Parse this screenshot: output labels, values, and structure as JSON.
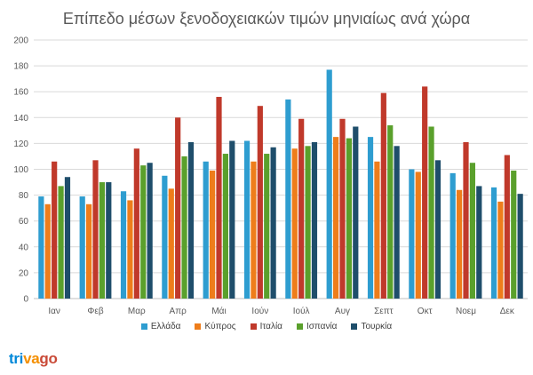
{
  "chart_data": {
    "type": "bar",
    "title": "Επίπεδο μέσων ξενοδοχειακών τιμών μηνιαίως ανά χώρα",
    "xlabel": "",
    "ylabel": "",
    "ylim": [
      0,
      200
    ],
    "yticks": [
      "0",
      "20",
      "40",
      "60",
      "80",
      "100",
      "120",
      "140",
      "160",
      "180",
      "200"
    ],
    "grid": true,
    "legend_position": "bottom",
    "categories": [
      "Ιαν",
      "Φεβ",
      "Μαρ",
      "Απρ",
      "Μάι",
      "Ιούν",
      "Ιούλ",
      "Αυγ",
      "Σεπτ",
      "Οκτ",
      "Νοεμ",
      "Δεκ"
    ],
    "series": [
      {
        "name": "Ελλάδα",
        "color": "#2e9dd0",
        "values": [
          79,
          79,
          83,
          95,
          106,
          122,
          154,
          177,
          125,
          100,
          97,
          86
        ]
      },
      {
        "name": "Κύπρος",
        "color": "#ee7d1b",
        "values": [
          73,
          73,
          76,
          85,
          99,
          106,
          116,
          125,
          106,
          98,
          84,
          75
        ]
      },
      {
        "name": "Ιταλία",
        "color": "#c0392b",
        "values": [
          106,
          107,
          116,
          140,
          156,
          149,
          139,
          139,
          159,
          164,
          121,
          111
        ]
      },
      {
        "name": "Ισπανία",
        "color": "#5aa02c",
        "values": [
          87,
          90,
          103,
          110,
          112,
          112,
          118,
          124,
          134,
          133,
          105,
          99
        ]
      },
      {
        "name": "Τουρκία",
        "color": "#1f4e6b",
        "values": [
          94,
          90,
          105,
          121,
          122,
          117,
          121,
          133,
          118,
          107,
          87,
          81
        ]
      }
    ]
  },
  "brand": {
    "part1": "tri",
    "part2": "va",
    "part3": "go"
  }
}
